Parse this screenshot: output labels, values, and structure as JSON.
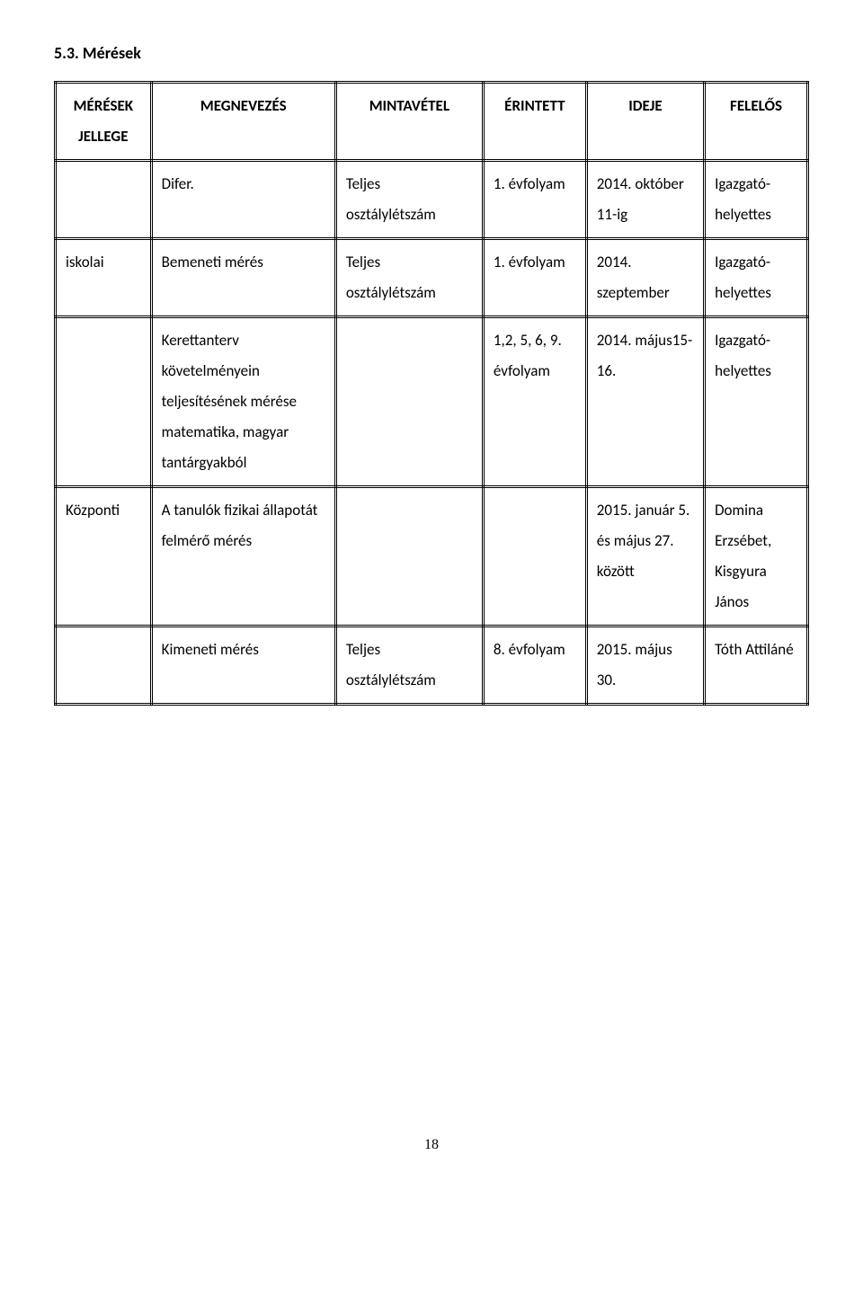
{
  "heading": "5.3. Mérések",
  "headers": [
    "MÉRÉSEK JELLEGE",
    "MEGNEVEZÉS",
    "MINTAVÉTEL",
    "ÉRINTETT",
    "IDEJE",
    "FELELŐS"
  ],
  "rows": [
    {
      "c0": "",
      "c1": "Difer.",
      "c2": "Teljes osztálylétszám",
      "c3": "1. évfolyam",
      "c4": "2014. október 11-ig",
      "c5": "Igazgató-helyettes"
    },
    {
      "c0": "iskolai",
      "c1": "Bemeneti mérés",
      "c2": "Teljes osztálylétszám",
      "c3": "1. évfolyam",
      "c4": "2014. szeptember",
      "c5": "Igazgató-helyettes"
    },
    {
      "c0": "",
      "c1": "Kerettanterv követelményein teljesítésének mérése matematika, magyar tantárgyakból",
      "c2": "",
      "c3": "1,2, 5, 6, 9. évfolyam",
      "c4": "2014. május15-16.",
      "c5": "Igazgató-helyettes"
    },
    {
      "c0": "Központi",
      "c1": "A tanulók fizikai állapotát felmérő mérés",
      "c2": "",
      "c3": "",
      "c4": "2015. január 5. és május 27. között",
      "c5": "Domina Erzsébet, Kisgyura János"
    },
    {
      "c0": "",
      "c1": "Kimeneti mérés",
      "c2": "Teljes osztálylétszám",
      "c3": "8. évfolyam",
      "c4": "2015. május 30.",
      "c5": "Tóth Attiláné"
    }
  ],
  "pageNumber": "18"
}
